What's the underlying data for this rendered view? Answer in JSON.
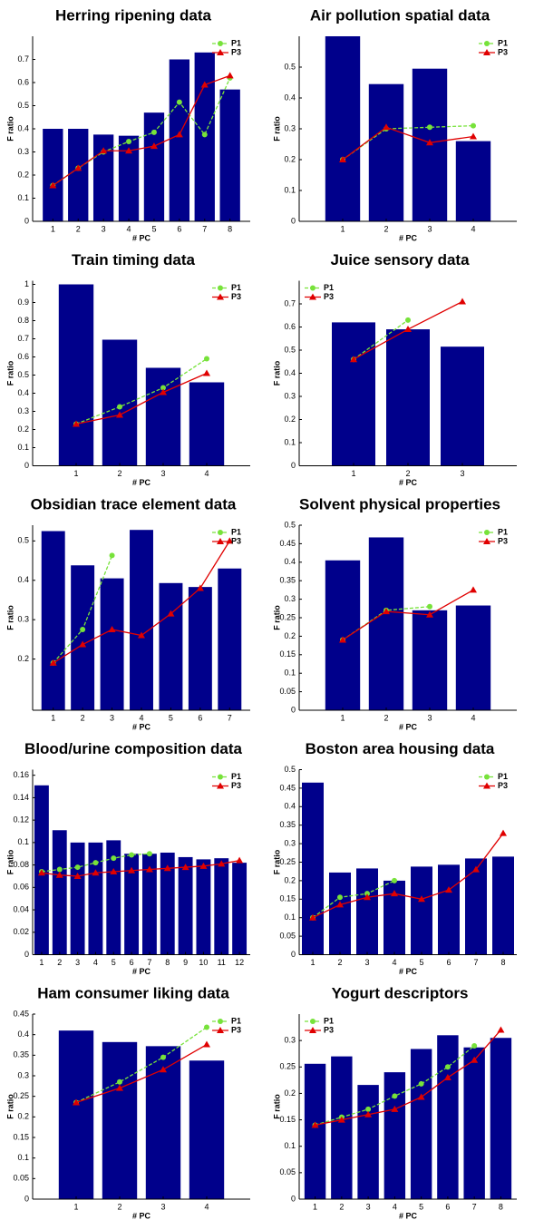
{
  "chart_data": [
    {
      "type": "bar",
      "title": "Herring ripening data",
      "x_label": "# PC",
      "y_label": "F ratio",
      "x": [
        1,
        2,
        3,
        4,
        5,
        6,
        7,
        8
      ],
      "values": [
        0.4,
        0.4,
        0.375,
        0.37,
        0.47,
        0.7,
        0.73,
        0.57
      ],
      "color": "#00008b",
      "xlim": [
        0.2,
        8.8
      ],
      "xticks": [
        1,
        2,
        3,
        4,
        5,
        6,
        7,
        8
      ],
      "ylim": [
        0,
        0.8
      ],
      "yticks": [
        0,
        0.1,
        0.2,
        0.3,
        0.4,
        0.5,
        0.6,
        0.7
      ],
      "legend": "top-right",
      "series": [
        {
          "name": "P1",
          "type": "line",
          "color": "#77e23a",
          "values": [
            0.155,
            0.23,
            0.3,
            0.345,
            0.385,
            0.515,
            0.375,
            0.62
          ]
        },
        {
          "name": "P3",
          "type": "line",
          "color": "#e00000",
          "values": [
            0.155,
            0.23,
            0.305,
            0.305,
            0.325,
            0.375,
            0.59,
            0.63
          ]
        }
      ]
    },
    {
      "type": "bar",
      "title": "Air pollution spatial data",
      "x_label": "# PC",
      "y_label": "F ratio",
      "x": [
        1,
        2,
        3,
        4
      ],
      "values": [
        0.6,
        0.445,
        0.495,
        0.26
      ],
      "color": "#00008b",
      "xlim": [
        0,
        5
      ],
      "xticks": [
        1,
        2,
        3,
        4
      ],
      "ylim": [
        0,
        0.6
      ],
      "yticks": [
        0,
        0.1,
        0.2,
        0.3,
        0.4,
        0.5
      ],
      "legend": "top-right",
      "series": [
        {
          "name": "P1",
          "type": "line",
          "color": "#77e23a",
          "values": [
            0.2,
            0.3,
            0.305,
            0.31
          ]
        },
        {
          "name": "P3",
          "type": "line",
          "color": "#e00000",
          "values": [
            0.2,
            0.305,
            0.255,
            0.275
          ]
        }
      ]
    },
    {
      "type": "bar",
      "title": "Train timing data",
      "x_label": "# PC",
      "y_label": "F ratio",
      "x": [
        1,
        2,
        3,
        4
      ],
      "values": [
        1.0,
        0.695,
        0.54,
        0.46
      ],
      "color": "#00008b",
      "xlim": [
        0,
        5
      ],
      "xticks": [
        1,
        2,
        3,
        4
      ],
      "ylim": [
        0,
        1.02
      ],
      "yticks": [
        0,
        0.1,
        0.2,
        0.3,
        0.4,
        0.5,
        0.6,
        0.7,
        0.8,
        0.9,
        1
      ],
      "legend": "top-right",
      "series": [
        {
          "name": "P1",
          "type": "line",
          "color": "#77e23a",
          "values": [
            0.23,
            0.325,
            0.43,
            0.59
          ]
        },
        {
          "name": "P3",
          "type": "line",
          "color": "#e00000",
          "values": [
            0.23,
            0.28,
            0.405,
            0.51
          ]
        }
      ]
    },
    {
      "type": "bar",
      "title": "Juice sensory data",
      "x_label": "# PC",
      "y_label": "F ratio",
      "x": [
        1,
        2,
        3
      ],
      "values": [
        0.62,
        0.59,
        0.515
      ],
      "color": "#00008b",
      "xlim": [
        0,
        4
      ],
      "xticks": [
        1,
        2,
        3
      ],
      "ylim": [
        0,
        0.8
      ],
      "yticks": [
        0,
        0.1,
        0.2,
        0.3,
        0.4,
        0.5,
        0.6,
        0.7
      ],
      "legend": "top-left",
      "series": [
        {
          "name": "P1",
          "type": "line",
          "color": "#77e23a",
          "values": [
            0.46,
            0.63,
            null
          ]
        },
        {
          "name": "P3",
          "type": "line",
          "color": "#e00000",
          "values": [
            0.46,
            0.59,
            0.71
          ]
        }
      ]
    },
    {
      "type": "bar",
      "title": "Obsidian trace element data",
      "x_label": "# PC",
      "y_label": "F ratio",
      "x": [
        1,
        2,
        3,
        4,
        5,
        6,
        7
      ],
      "values": [
        0.525,
        0.438,
        0.405,
        0.528,
        0.393,
        0.383,
        0.43
      ],
      "color": "#00008b",
      "xlim": [
        0.3,
        7.7
      ],
      "xticks": [
        1,
        2,
        3,
        4,
        5,
        6,
        7
      ],
      "ylim": [
        0.07,
        0.54
      ],
      "yticks": [
        0.2,
        0.3,
        0.4,
        0.5
      ],
      "legend": "top-right",
      "series": [
        {
          "name": "P1",
          "type": "line",
          "color": "#77e23a",
          "values": [
            0.19,
            0.275,
            0.463,
            null,
            null,
            null,
            null
          ]
        },
        {
          "name": "P3",
          "type": "line",
          "color": "#e00000",
          "values": [
            0.19,
            0.237,
            0.275,
            0.26,
            0.315,
            0.38,
            0.5
          ]
        }
      ]
    },
    {
      "type": "bar",
      "title": "Solvent physical properties",
      "x_label": "# PC",
      "y_label": "F ratio",
      "x": [
        1,
        2,
        3,
        4
      ],
      "values": [
        0.405,
        0.467,
        0.27,
        0.283
      ],
      "color": "#00008b",
      "xlim": [
        0,
        5
      ],
      "xticks": [
        1,
        2,
        3,
        4
      ],
      "ylim": [
        0,
        0.5
      ],
      "yticks": [
        0,
        0.05,
        0.1,
        0.15,
        0.2,
        0.25,
        0.3,
        0.35,
        0.4,
        0.45,
        0.5
      ],
      "legend": "top-right",
      "series": [
        {
          "name": "P1",
          "type": "line",
          "color": "#77e23a",
          "values": [
            0.19,
            0.27,
            0.28,
            null
          ]
        },
        {
          "name": "P3",
          "type": "line",
          "color": "#e00000",
          "values": [
            0.19,
            0.267,
            0.258,
            0.325
          ]
        }
      ]
    },
    {
      "type": "bar",
      "title": "Blood/urine composition data",
      "x_label": "# PC",
      "y_label": "F ratio",
      "x": [
        1,
        2,
        3,
        4,
        5,
        6,
        7,
        8,
        9,
        10,
        11,
        12
      ],
      "values": [
        0.151,
        0.111,
        0.1,
        0.1,
        0.102,
        0.09,
        0.09,
        0.091,
        0.087,
        0.085,
        0.086,
        0.082
      ],
      "color": "#00008b",
      "xlim": [
        0.5,
        12.6
      ],
      "xticks": [
        1,
        2,
        3,
        4,
        5,
        6,
        7,
        8,
        9,
        10,
        11,
        12
      ],
      "ylim": [
        0,
        0.165
      ],
      "yticks": [
        0,
        0.02,
        0.04,
        0.06,
        0.08,
        0.1,
        0.12,
        0.14,
        0.16
      ],
      "legend": "top-right",
      "series": [
        {
          "name": "P1",
          "type": "line",
          "color": "#77e23a",
          "values": [
            0.074,
            0.076,
            0.078,
            0.082,
            0.086,
            0.089,
            0.09,
            null,
            null,
            null,
            null,
            null
          ]
        },
        {
          "name": "P3",
          "type": "line",
          "color": "#e00000",
          "values": [
            0.073,
            0.071,
            0.07,
            0.073,
            0.074,
            0.075,
            0.076,
            0.077,
            0.078,
            0.079,
            0.081,
            0.084
          ]
        }
      ]
    },
    {
      "type": "bar",
      "title": "Boston area housing data",
      "x_label": "# PC",
      "y_label": "F ratio",
      "x": [
        1,
        2,
        3,
        4,
        5,
        6,
        7,
        8
      ],
      "values": [
        0.465,
        0.222,
        0.233,
        0.2,
        0.238,
        0.243,
        0.26,
        0.265
      ],
      "color": "#00008b",
      "xlim": [
        0.5,
        8.5
      ],
      "xticks": [
        1,
        2,
        3,
        4,
        5,
        6,
        7,
        8
      ],
      "ylim": [
        0,
        0.5
      ],
      "yticks": [
        0,
        0.05,
        0.1,
        0.15,
        0.2,
        0.25,
        0.3,
        0.35,
        0.4,
        0.45,
        0.5
      ],
      "legend": "top-right",
      "series": [
        {
          "name": "P1",
          "type": "line",
          "color": "#77e23a",
          "values": [
            0.1,
            0.155,
            0.165,
            0.2,
            null,
            null,
            null,
            null
          ]
        },
        {
          "name": "P3",
          "type": "line",
          "color": "#e00000",
          "values": [
            0.1,
            0.135,
            0.155,
            0.165,
            0.15,
            0.175,
            0.23,
            0.328
          ]
        }
      ]
    },
    {
      "type": "bar",
      "title": "Ham consumer liking data",
      "x_label": "# PC",
      "y_label": "F ratio",
      "x": [
        1,
        2,
        3,
        4
      ],
      "values": [
        0.41,
        0.382,
        0.372,
        0.337
      ],
      "color": "#00008b",
      "xlim": [
        0,
        5
      ],
      "xticks": [
        1,
        2,
        3,
        4
      ],
      "ylim": [
        0,
        0.45
      ],
      "yticks": [
        0,
        0.05,
        0.1,
        0.15,
        0.2,
        0.25,
        0.3,
        0.35,
        0.4,
        0.45
      ],
      "legend": "top-right",
      "series": [
        {
          "name": "P1",
          "type": "line",
          "color": "#77e23a",
          "values": [
            0.235,
            0.285,
            0.345,
            0.418
          ]
        },
        {
          "name": "P3",
          "type": "line",
          "color": "#e00000",
          "values": [
            0.235,
            0.27,
            0.315,
            0.376
          ]
        }
      ]
    },
    {
      "type": "bar",
      "title": "Yogurt descriptors",
      "x_label": "# PC",
      "y_label": "F ratio",
      "x": [
        1,
        2,
        3,
        4,
        5,
        6,
        7,
        8
      ],
      "values": [
        0.256,
        0.27,
        0.216,
        0.24,
        0.284,
        0.31,
        0.287,
        0.305
      ],
      "color": "#00008b",
      "xlim": [
        0.4,
        8.6
      ],
      "xticks": [
        1,
        2,
        3,
        4,
        5,
        6,
        7,
        8
      ],
      "ylim": [
        0,
        0.35
      ],
      "yticks": [
        0,
        0.05,
        0.1,
        0.15,
        0.2,
        0.25,
        0.3
      ],
      "legend": "top-left",
      "series": [
        {
          "name": "P1",
          "type": "line",
          "color": "#77e23a",
          "values": [
            0.14,
            0.155,
            0.17,
            0.195,
            0.218,
            0.25,
            0.29,
            null
          ]
        },
        {
          "name": "P3",
          "type": "line",
          "color": "#e00000",
          "values": [
            0.14,
            0.15,
            0.16,
            0.17,
            0.193,
            0.23,
            0.263,
            0.32
          ]
        }
      ]
    }
  ]
}
